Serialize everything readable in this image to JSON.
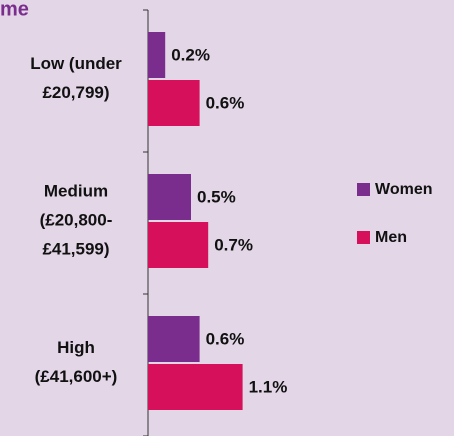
{
  "chart_data": {
    "type": "hbar",
    "title": "me",
    "categories": [
      [
        "Low (under",
        "£20,799)"
      ],
      [
        "Medium",
        "(£20,800-",
        "£41,599)"
      ],
      [
        "High",
        "(£41,600+)"
      ]
    ],
    "series": [
      {
        "name": "Women",
        "color": "#7b2d8e",
        "values": [
          0.2,
          0.5,
          0.6
        ],
        "value_labels": [
          "0.2%",
          "0.5%",
          "0.6%"
        ]
      },
      {
        "name": "Men",
        "color": "#d6105a",
        "values": [
          0.6,
          0.7,
          1.1
        ],
        "value_labels": [
          "0.6%",
          "0.7%",
          "1.1%"
        ]
      }
    ],
    "xlim": [
      0,
      3.5
    ],
    "legend": "right"
  }
}
